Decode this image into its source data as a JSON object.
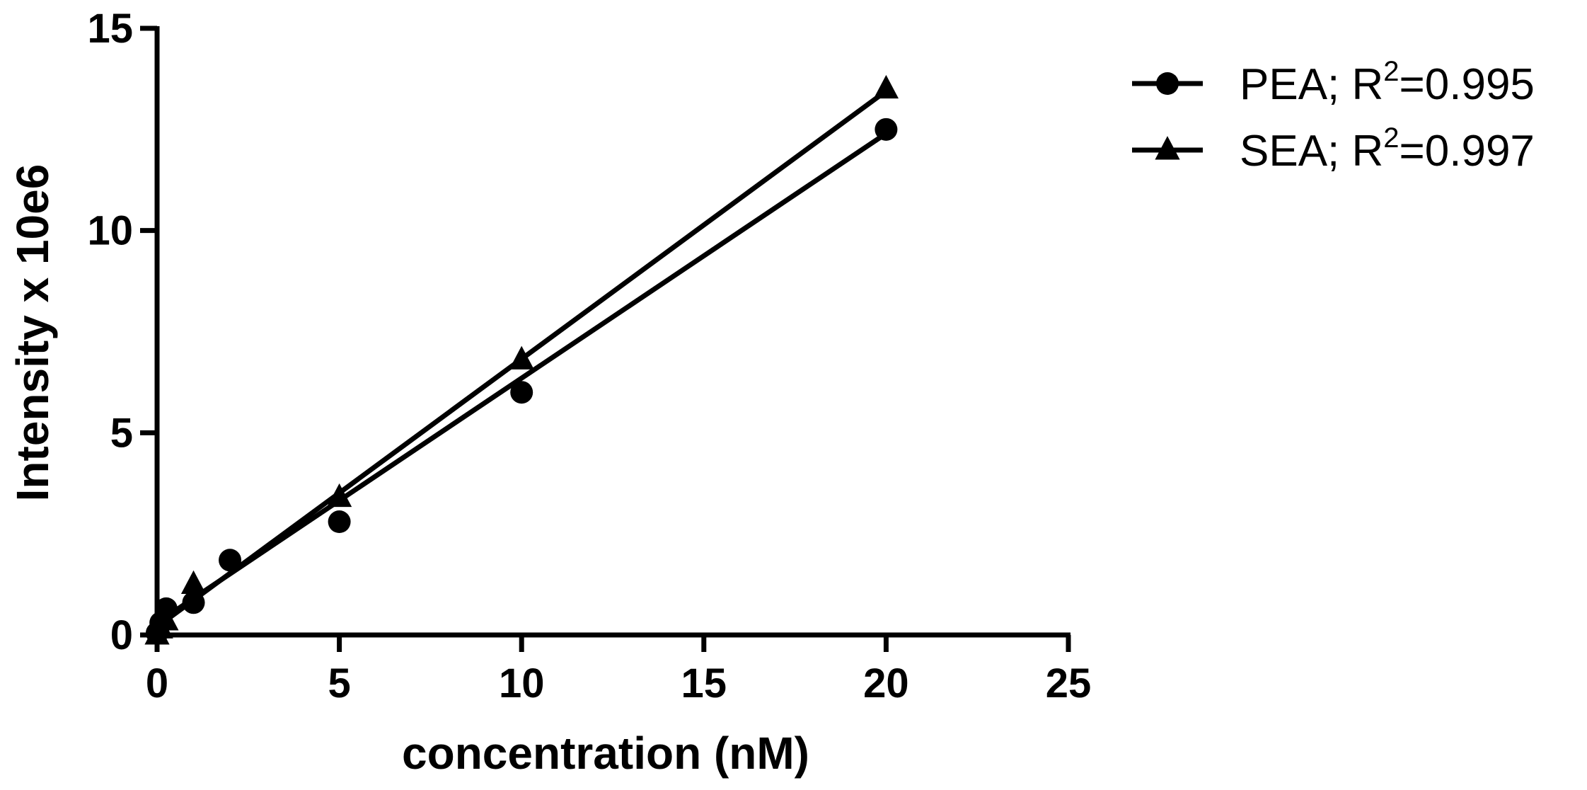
{
  "chart_data": {
    "type": "scatter",
    "title": "",
    "xlabel": "concentration (nM)",
    "ylabel": "Intensity x 10e6",
    "xlim": [
      0,
      25
    ],
    "ylim": [
      0,
      15
    ],
    "x_ticks": [
      0,
      5,
      10,
      15,
      20,
      25
    ],
    "y_ticks": [
      0,
      5,
      10,
      15
    ],
    "grid": false,
    "legend_position": "top-right",
    "series": [
      {
        "name": "PEA",
        "legend_label": "PEA; R",
        "r2_exponent": "2",
        "r2_value": "=0.995",
        "marker": "circle",
        "color": "#000000",
        "x": [
          0,
          0.1,
          0.25,
          1,
          2,
          5,
          10,
          20
        ],
        "y": [
          0.05,
          0.3,
          0.65,
          0.8,
          1.85,
          2.8,
          6.0,
          12.5
        ],
        "fit": {
          "x": [
            0,
            20
          ],
          "y": [
            0.3,
            12.4
          ]
        }
      },
      {
        "name": "SEA",
        "legend_label": "SEA; R",
        "r2_exponent": "2",
        "r2_value": "=0.997",
        "marker": "triangle",
        "color": "#000000",
        "x": [
          0,
          0.1,
          0.25,
          1,
          5,
          10,
          20
        ],
        "y": [
          0.0,
          0.15,
          0.35,
          1.25,
          3.4,
          6.8,
          13.5
        ],
        "fit": {
          "x": [
            0,
            20
          ],
          "y": [
            0.2,
            13.45
          ]
        }
      }
    ]
  }
}
